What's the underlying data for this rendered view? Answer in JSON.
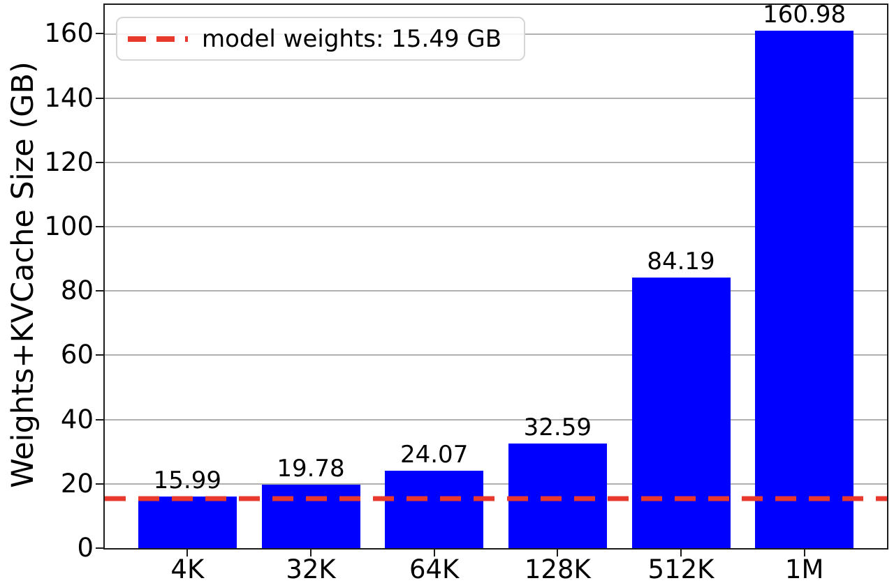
{
  "chart_data": {
    "type": "bar",
    "title": "",
    "xlabel": "",
    "ylabel": "Weights+KVCache Size (GB)",
    "categories": [
      "4K",
      "32K",
      "64K",
      "128K",
      "512K",
      "1M"
    ],
    "values": [
      15.99,
      19.78,
      24.07,
      32.59,
      84.19,
      160.98
    ],
    "value_labels": [
      "15.99",
      "19.78",
      "24.07",
      "32.59",
      "84.19",
      "160.98"
    ],
    "yticks": [
      0,
      20,
      40,
      60,
      80,
      100,
      120,
      140,
      160
    ],
    "ylim": [
      0,
      169
    ],
    "grid": "horizontal",
    "grid_color": "#b0b0b0",
    "bar_color": "#0000ff",
    "threshold_line": {
      "value": 15.49,
      "label": "model weights: 15.49 GB",
      "color": "#e8392e",
      "style": "dashed"
    },
    "legend_position": "upper-left"
  }
}
